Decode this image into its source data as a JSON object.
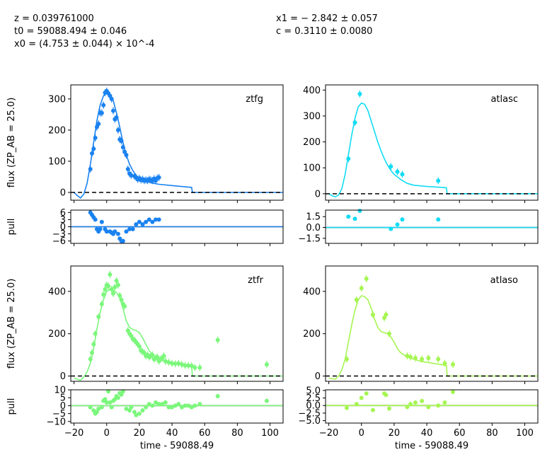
{
  "header": {
    "left": [
      "z = 0.039761000",
      "t0 = 59088.494 ± 0.046",
      "x0 = (4.753 ± 0.044) × 10^-4"
    ],
    "right": [
      "x1 = − 2.842 ± 0.057",
      "c = 0.3110 ± 0.0080"
    ]
  },
  "colors": {
    "ztfg": "#1a82f0",
    "atlasc": "#12dcf5",
    "ztfr": "#7bf77b",
    "atlaso": "#a6f553",
    "zero_line": "#000000"
  },
  "chart_data": [
    {
      "type": "scatter",
      "band": "ztfg",
      "label": "ztfg",
      "xlim": [
        -22,
        108
      ],
      "ylim": [
        -25,
        345
      ],
      "yticks": [
        0,
        100,
        200,
        300
      ],
      "ylabel": "flux (ZP_AB = 25.0)",
      "xlabel": "",
      "zero_line": true,
      "points": [
        [
          -10,
          75
        ],
        [
          -9,
          125
        ],
        [
          -8,
          140
        ],
        [
          -7,
          175
        ],
        [
          -6,
          210
        ],
        [
          -5,
          220
        ],
        [
          -4,
          255
        ],
        [
          -3,
          255
        ],
        [
          -2,
          280
        ],
        [
          -1,
          320
        ],
        [
          0,
          325
        ],
        [
          1,
          318
        ],
        [
          2,
          310
        ],
        [
          3,
          300
        ],
        [
          4,
          262
        ],
        [
          5,
          235
        ],
        [
          6,
          240
        ],
        [
          7,
          200
        ],
        [
          8,
          170
        ],
        [
          9,
          165
        ],
        [
          10,
          145
        ],
        [
          11,
          130
        ],
        [
          12,
          120
        ],
        [
          13,
          75
        ],
        [
          14,
          60
        ],
        [
          15,
          55
        ],
        [
          17,
          52
        ],
        [
          18,
          48
        ],
        [
          19,
          42
        ],
        [
          20,
          45
        ],
        [
          21,
          40
        ],
        [
          22,
          42
        ],
        [
          23,
          38
        ],
        [
          24,
          40
        ],
        [
          25,
          38
        ],
        [
          26,
          42
        ],
        [
          27,
          40
        ],
        [
          28,
          38
        ],
        [
          29,
          44
        ],
        [
          30,
          38
        ],
        [
          31,
          46
        ],
        [
          32,
          48
        ]
      ],
      "model": [
        [
          -20,
          0
        ],
        [
          -18,
          -10
        ],
        [
          -16,
          -18
        ],
        [
          -14,
          -5
        ],
        [
          -12,
          30
        ],
        [
          -10,
          90
        ],
        [
          -8,
          160
        ],
        [
          -6,
          230
        ],
        [
          -4,
          280
        ],
        [
          -2,
          310
        ],
        [
          0,
          320
        ],
        [
          2,
          315
        ],
        [
          4,
          295
        ],
        [
          6,
          255
        ],
        [
          8,
          210
        ],
        [
          10,
          160
        ],
        [
          12,
          120
        ],
        [
          14,
          90
        ],
        [
          16,
          70
        ],
        [
          18,
          55
        ],
        [
          20,
          45
        ],
        [
          24,
          35
        ],
        [
          28,
          30
        ],
        [
          32,
          26
        ],
        [
          40,
          22
        ],
        [
          48,
          18
        ],
        [
          52,
          16
        ],
        [
          52.5,
          0
        ],
        [
          108,
          0
        ]
      ]
    },
    {
      "type": "scatter",
      "band": "atlasc",
      "label": "atlasc",
      "xlim": [
        -22,
        108
      ],
      "ylim": [
        -25,
        420
      ],
      "yticks": [
        0,
        100,
        200,
        300,
        400
      ],
      "ylabel": "",
      "xlabel": "",
      "zero_line": true,
      "points": [
        [
          -8,
          135
        ],
        [
          -4,
          275
        ],
        [
          -1,
          385
        ],
        [
          18,
          105
        ],
        [
          22,
          85
        ],
        [
          25,
          75
        ],
        [
          47,
          50
        ]
      ],
      "model": [
        [
          -20,
          0
        ],
        [
          -18,
          -8
        ],
        [
          -16,
          -12
        ],
        [
          -14,
          -5
        ],
        [
          -12,
          20
        ],
        [
          -10,
          75
        ],
        [
          -8,
          150
        ],
        [
          -6,
          225
        ],
        [
          -4,
          290
        ],
        [
          -2,
          335
        ],
        [
          0,
          350
        ],
        [
          2,
          345
        ],
        [
          4,
          320
        ],
        [
          6,
          280
        ],
        [
          8,
          240
        ],
        [
          10,
          200
        ],
        [
          12,
          165
        ],
        [
          14,
          135
        ],
        [
          16,
          110
        ],
        [
          18,
          90
        ],
        [
          20,
          75
        ],
        [
          24,
          55
        ],
        [
          28,
          40
        ],
        [
          32,
          33
        ],
        [
          40,
          28
        ],
        [
          48,
          25
        ],
        [
          52,
          23
        ],
        [
          52.5,
          0
        ],
        [
          108,
          0
        ]
      ]
    },
    {
      "type": "scatter",
      "band": "ztfr",
      "label": "ztfr",
      "xlim": [
        -22,
        108
      ],
      "ylim": [
        -25,
        520
      ],
      "yticks": [
        0,
        200,
        400
      ],
      "ylabel": "flux (ZP_AB = 25.0)",
      "xlabel": "",
      "zero_line": true,
      "points": [
        [
          -10,
          80
        ],
        [
          -9,
          110
        ],
        [
          -8,
          150
        ],
        [
          -7,
          200
        ],
        [
          -5,
          280
        ],
        [
          -3,
          340
        ],
        [
          -2,
          385
        ],
        [
          -1,
          410
        ],
        [
          0,
          430
        ],
        [
          1,
          425
        ],
        [
          2,
          480
        ],
        [
          3,
          410
        ],
        [
          4,
          390
        ],
        [
          5,
          420
        ],
        [
          6,
          450
        ],
        [
          7,
          430
        ],
        [
          8,
          380
        ],
        [
          9,
          360
        ],
        [
          10,
          340
        ],
        [
          11,
          330
        ],
        [
          13,
          215
        ],
        [
          14,
          200
        ],
        [
          15,
          190
        ],
        [
          16,
          175
        ],
        [
          17,
          170
        ],
        [
          18,
          160
        ],
        [
          19,
          150
        ],
        [
          20,
          140
        ],
        [
          21,
          120
        ],
        [
          22,
          115
        ],
        [
          23,
          110
        ],
        [
          24,
          95
        ],
        [
          25,
          100
        ],
        [
          26,
          90
        ],
        [
          27,
          95
        ],
        [
          28,
          100
        ],
        [
          29,
          80
        ],
        [
          30,
          85
        ],
        [
          31,
          90
        ],
        [
          32,
          70
        ],
        [
          33,
          80
        ],
        [
          34,
          85
        ],
        [
          35,
          95
        ],
        [
          36,
          70
        ],
        [
          38,
          65
        ],
        [
          40,
          60
        ],
        [
          42,
          58
        ],
        [
          44,
          60
        ],
        [
          46,
          55
        ],
        [
          48,
          50
        ],
        [
          50,
          50
        ],
        [
          52,
          48
        ],
        [
          54,
          40
        ],
        [
          57,
          40
        ],
        [
          68,
          170
        ],
        [
          98,
          55
        ]
      ],
      "model": [
        [
          -20,
          -10
        ],
        [
          -16,
          -20
        ],
        [
          -14,
          -5
        ],
        [
          -12,
          20
        ],
        [
          -10,
          60
        ],
        [
          -8,
          130
        ],
        [
          -6,
          220
        ],
        [
          -4,
          300
        ],
        [
          -2,
          360
        ],
        [
          0,
          400
        ],
        [
          2,
          410
        ],
        [
          4,
          405
        ],
        [
          6,
          395
        ],
        [
          8,
          370
        ],
        [
          10,
          320
        ],
        [
          12,
          260
        ],
        [
          14,
          230
        ],
        [
          16,
          220
        ],
        [
          18,
          215
        ],
        [
          20,
          205
        ],
        [
          22,
          180
        ],
        [
          24,
          150
        ],
        [
          26,
          120
        ],
        [
          28,
          100
        ],
        [
          32,
          80
        ],
        [
          36,
          70
        ],
        [
          40,
          60
        ],
        [
          44,
          55
        ],
        [
          48,
          50
        ],
        [
          52,
          45
        ],
        [
          52.5,
          0
        ],
        [
          108,
          0
        ]
      ]
    },
    {
      "type": "scatter",
      "band": "atlaso",
      "label": "atlaso",
      "xlim": [
        -22,
        108
      ],
      "ylim": [
        -25,
        520
      ],
      "yticks": [
        0,
        200,
        400
      ],
      "ylabel": "",
      "xlabel": "",
      "zero_line": true,
      "points": [
        [
          -9,
          80
        ],
        [
          -3,
          360
        ],
        [
          0,
          415
        ],
        [
          3,
          460
        ],
        [
          7,
          290
        ],
        [
          14,
          275
        ],
        [
          15,
          290
        ],
        [
          17,
          200
        ],
        [
          28,
          95
        ],
        [
          30,
          90
        ],
        [
          33,
          85
        ],
        [
          37,
          80
        ],
        [
          41,
          85
        ],
        [
          47,
          80
        ],
        [
          51,
          60
        ],
        [
          56,
          55
        ]
      ],
      "model": [
        [
          -20,
          -10
        ],
        [
          -16,
          -15
        ],
        [
          -14,
          0
        ],
        [
          -12,
          30
        ],
        [
          -10,
          80
        ],
        [
          -8,
          160
        ],
        [
          -6,
          240
        ],
        [
          -4,
          310
        ],
        [
          -2,
          360
        ],
        [
          0,
          380
        ],
        [
          2,
          375
        ],
        [
          4,
          360
        ],
        [
          6,
          320
        ],
        [
          8,
          270
        ],
        [
          10,
          230
        ],
        [
          12,
          210
        ],
        [
          14,
          205
        ],
        [
          16,
          200
        ],
        [
          18,
          185
        ],
        [
          20,
          160
        ],
        [
          22,
          130
        ],
        [
          24,
          110
        ],
        [
          28,
          90
        ],
        [
          32,
          80
        ],
        [
          36,
          70
        ],
        [
          40,
          65
        ],
        [
          44,
          60
        ],
        [
          48,
          55
        ],
        [
          52,
          50
        ],
        [
          52.5,
          0
        ],
        [
          108,
          0
        ]
      ]
    },
    {
      "type": "scatter",
      "band": "ztfg",
      "label": "",
      "xlim": [
        -22,
        108
      ],
      "ylim": [
        -7,
        7
      ],
      "yticks": [
        -6,
        -3,
        0,
        3,
        6
      ],
      "ylabel": "pull",
      "xlabel": "",
      "zero_line": true,
      "points": [
        [
          -10,
          6
        ],
        [
          -9,
          5
        ],
        [
          -8,
          4
        ],
        [
          -7,
          3
        ],
        [
          -6,
          -1
        ],
        [
          -5,
          -2
        ],
        [
          -4,
          -1
        ],
        [
          -3,
          2
        ],
        [
          -1,
          -1
        ],
        [
          0,
          -2
        ],
        [
          2,
          -2
        ],
        [
          3,
          -2.5
        ],
        [
          4,
          -3
        ],
        [
          5,
          -2
        ],
        [
          7,
          -3
        ],
        [
          8,
          -5
        ],
        [
          9,
          -6
        ],
        [
          10,
          -6
        ],
        [
          12,
          -2
        ],
        [
          14,
          -1
        ],
        [
          16,
          -1
        ],
        [
          18,
          1
        ],
        [
          20,
          2
        ],
        [
          22,
          1
        ],
        [
          24,
          2
        ],
        [
          26,
          3
        ],
        [
          28,
          2
        ],
        [
          30,
          3
        ],
        [
          32,
          3
        ]
      ]
    },
    {
      "type": "scatter",
      "band": "atlasc",
      "label": "",
      "xlim": [
        -22,
        108
      ],
      "ylim": [
        -2.2,
        2.4
      ],
      "yticks": [
        -1.5,
        0.0,
        1.5
      ],
      "ylabel": "",
      "xlabel": "",
      "zero_line": true,
      "points": [
        [
          -8,
          1.5
        ],
        [
          -4,
          1.2
        ],
        [
          -1,
          2.3
        ],
        [
          18,
          -0.2
        ],
        [
          22,
          0.4
        ],
        [
          25,
          1.1
        ],
        [
          47,
          1.1
        ]
      ]
    },
    {
      "type": "scatter",
      "band": "ztfr",
      "label": "",
      "xlim": [
        -22,
        108
      ],
      "ylim": [
        -11,
        10
      ],
      "yticks": [
        -10,
        -5,
        0,
        5,
        10
      ],
      "ylabel": "pull",
      "xlabel": "time - 59088.49",
      "xticks": [
        -20,
        0,
        20,
        40,
        60,
        80,
        100
      ],
      "zero_line": true,
      "points": [
        [
          -10,
          -1
        ],
        [
          -8,
          -3
        ],
        [
          -7,
          -5
        ],
        [
          -6,
          -4
        ],
        [
          -5,
          -2
        ],
        [
          -3,
          -1
        ],
        [
          -2,
          3
        ],
        [
          -1,
          4
        ],
        [
          0,
          2
        ],
        [
          1,
          9
        ],
        [
          2,
          2
        ],
        [
          3,
          -1
        ],
        [
          4,
          3
        ],
        [
          5,
          4
        ],
        [
          6,
          6
        ],
        [
          7,
          5
        ],
        [
          8,
          8
        ],
        [
          9,
          7
        ],
        [
          10,
          9
        ],
        [
          12,
          -2
        ],
        [
          14,
          -3
        ],
        [
          15,
          -1
        ],
        [
          17,
          -4
        ],
        [
          18,
          -6
        ],
        [
          20,
          -5
        ],
        [
          22,
          -3
        ],
        [
          24,
          -1
        ],
        [
          26,
          1
        ],
        [
          28,
          0
        ],
        [
          30,
          2
        ],
        [
          32,
          1
        ],
        [
          34,
          1
        ],
        [
          36,
          2
        ],
        [
          38,
          -1
        ],
        [
          40,
          -1
        ],
        [
          42,
          0
        ],
        [
          44,
          1
        ],
        [
          46,
          -1
        ],
        [
          48,
          0
        ],
        [
          50,
          0
        ],
        [
          52,
          -1
        ],
        [
          54,
          0
        ],
        [
          57,
          1
        ],
        [
          68,
          6
        ],
        [
          98,
          3
        ]
      ]
    },
    {
      "type": "scatter",
      "band": "atlaso",
      "label": "",
      "xlim": [
        -22,
        108
      ],
      "ylim": [
        -5.8,
        5.2
      ],
      "yticks": [
        -5.0,
        -2.5,
        0.0,
        2.5,
        5.0
      ],
      "ylabel": "",
      "xlabel": "time - 59088.49",
      "xticks": [
        -20,
        0,
        20,
        40,
        60,
        80,
        100
      ],
      "zero_line": true,
      "points": [
        [
          -9,
          -0.8
        ],
        [
          -3,
          0.5
        ],
        [
          0,
          2.5
        ],
        [
          3,
          4
        ],
        [
          7,
          -1.5
        ],
        [
          14,
          4
        ],
        [
          15,
          3.5
        ],
        [
          17,
          -1
        ],
        [
          28,
          -0.5
        ],
        [
          30,
          0.5
        ],
        [
          33,
          1
        ],
        [
          37,
          1.5
        ],
        [
          41,
          -0.5
        ],
        [
          47,
          0
        ],
        [
          51,
          1
        ],
        [
          56,
          4.5
        ]
      ]
    }
  ]
}
